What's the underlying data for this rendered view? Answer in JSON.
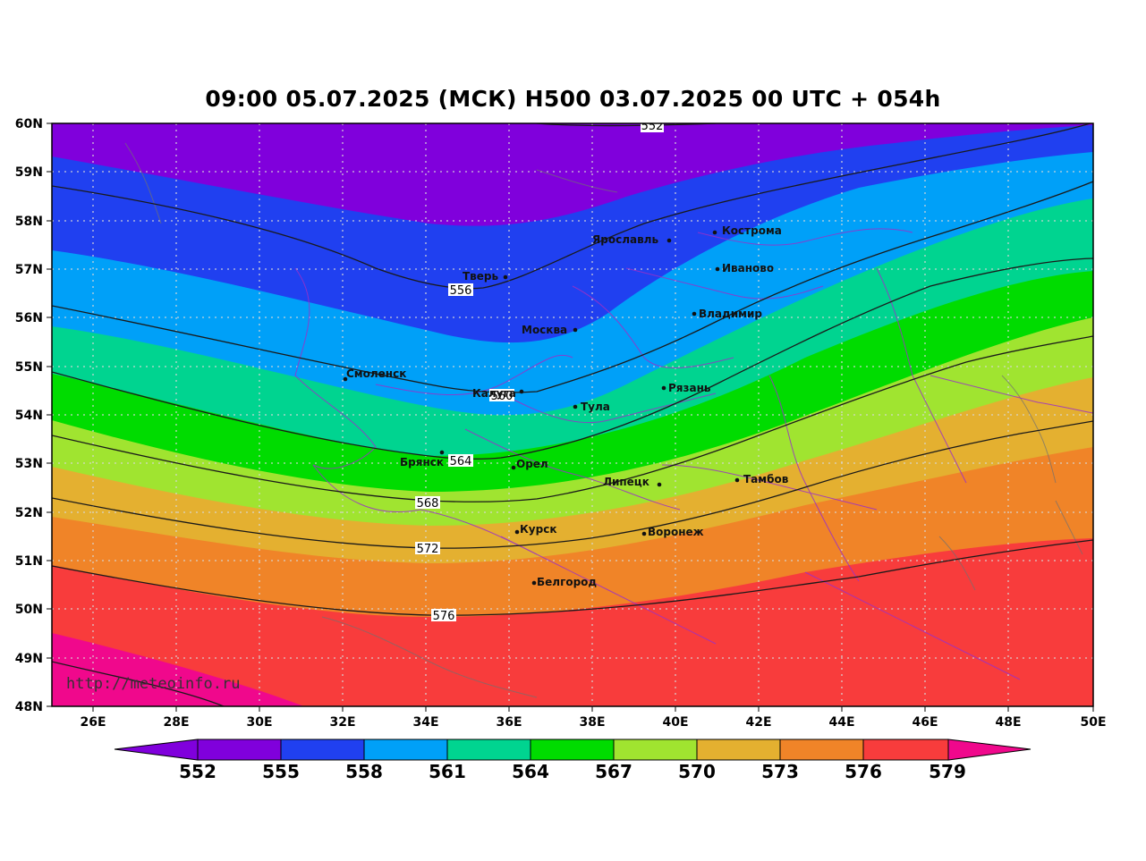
{
  "title": "09:00 05.07.2025 (МСК) H500  03.07.2025 00 UTC + 054h",
  "watermark": "http://meteoinfo.ru",
  "lat_ticks": [
    "60N",
    "59N",
    "58N",
    "57N",
    "56N",
    "55N",
    "54N",
    "53N",
    "52N",
    "51N",
    "50N",
    "49N",
    "48N"
  ],
  "lon_ticks": [
    "26E",
    "28E",
    "30E",
    "32E",
    "34E",
    "36E",
    "38E",
    "40E",
    "42E",
    "44E",
    "46E",
    "48E",
    "50E"
  ],
  "colorbar": {
    "labels": [
      "552",
      "555",
      "558",
      "561",
      "564",
      "567",
      "570",
      "573",
      "576",
      "579"
    ],
    "colors": [
      "#8000dc",
      "#2040f0",
      "#00a0f8",
      "#00d490",
      "#00dc00",
      "#a0e430",
      "#e4b030",
      "#f08428",
      "#f83c3c",
      "#f0088c"
    ]
  },
  "contour_labels": [
    "552",
    "556",
    "560",
    "564",
    "568",
    "572",
    "576"
  ],
  "cities": [
    {
      "name": "Кострома"
    },
    {
      "name": "Ярославль"
    },
    {
      "name": "Иваново"
    },
    {
      "name": "Тверь"
    },
    {
      "name": "Владимир"
    },
    {
      "name": "Москва"
    },
    {
      "name": "Смоленск"
    },
    {
      "name": "Рязань"
    },
    {
      "name": "Калуга"
    },
    {
      "name": "Тула"
    },
    {
      "name": "Брянск"
    },
    {
      "name": "Орел"
    },
    {
      "name": "Липецк"
    },
    {
      "name": "Тамбов"
    },
    {
      "name": "Курск"
    },
    {
      "name": "Воронеж"
    },
    {
      "name": "Белгород"
    }
  ]
}
